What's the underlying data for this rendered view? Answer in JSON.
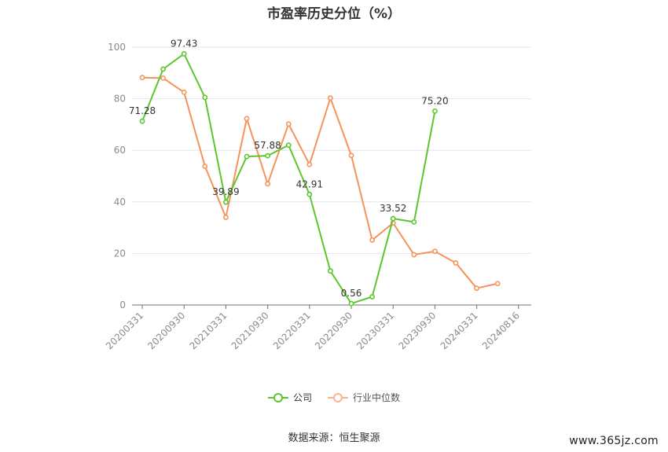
{
  "chart_data": {
    "type": "line",
    "title": "市盈率历史分位（%）",
    "xlabel": "",
    "ylabel": "",
    "ylim": [
      0,
      100
    ],
    "yticks": [
      0,
      20,
      40,
      60,
      80,
      100
    ],
    "x_tick_labels": [
      "20200331",
      "20200930",
      "20210331",
      "20210930",
      "20220331",
      "20220930",
      "20230331",
      "20230930",
      "20240331",
      "20240816"
    ],
    "series": [
      {
        "name": "公司",
        "color": "#5cc72d",
        "values": [
          71.28,
          91.5,
          97.43,
          80.5,
          39.89,
          57.6,
          57.88,
          62.0,
          42.91,
          13.2,
          0.56,
          3.2,
          33.52,
          32.2,
          75.2
        ],
        "labeled": {
          "0": "71.28",
          "2": "97.43",
          "4": "39.89",
          "6": "57.88",
          "8": "42.91",
          "10": "0.56",
          "12": "33.52",
          "14": "75.20"
        }
      },
      {
        "name": "行业中位数",
        "color": "#f5935a",
        "values": [
          88.2,
          88.0,
          82.5,
          53.8,
          34.0,
          72.3,
          47.0,
          70.2,
          54.5,
          80.3,
          58.0,
          25.2,
          31.8,
          19.5,
          20.8,
          16.3,
          6.5,
          8.3
        ]
      }
    ],
    "grid": true,
    "legend_position": "bottom"
  },
  "source": "数据来源：恒生聚源",
  "watermark": "www.365jz.com"
}
